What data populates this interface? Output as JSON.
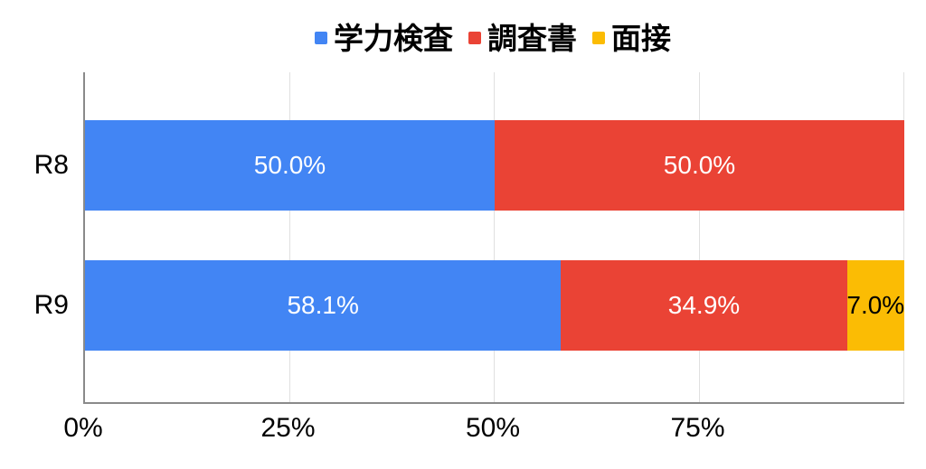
{
  "chart_data": {
    "type": "bar",
    "orientation": "horizontal",
    "stacked": true,
    "stacked_total": 100,
    "title": "",
    "xlabel": "",
    "ylabel": "",
    "categories": [
      "R8",
      "R9"
    ],
    "series": [
      {
        "name": "学力検査",
        "color": "#4285F4",
        "label_color": "#ffffff",
        "values": [
          50.0,
          58.1
        ],
        "labels": [
          "50.0%",
          "58.1%"
        ]
      },
      {
        "name": "調査書",
        "color": "#EA4335",
        "label_color": "#ffffff",
        "values": [
          50.0,
          34.9
        ],
        "labels": [
          "50.0%",
          "34.9%"
        ]
      },
      {
        "name": "面接",
        "color": "#FBBC04",
        "label_color": "#000000",
        "values": [
          0,
          7.0
        ],
        "labels": [
          "",
          "7.0%"
        ]
      }
    ],
    "x_axis": {
      "min": 0,
      "max": 100,
      "ticks": [
        0,
        25,
        50,
        75
      ],
      "tick_labels": [
        "0%",
        "25%",
        "50%",
        "75%"
      ],
      "gridlines": [
        0,
        25,
        50,
        75,
        100
      ]
    },
    "legend_position": "top",
    "grid": true,
    "colors": {
      "axis_line": "#8a8a8a",
      "gridline": "#e0e0e0",
      "text": "#000000",
      "background": "#ffffff"
    }
  }
}
